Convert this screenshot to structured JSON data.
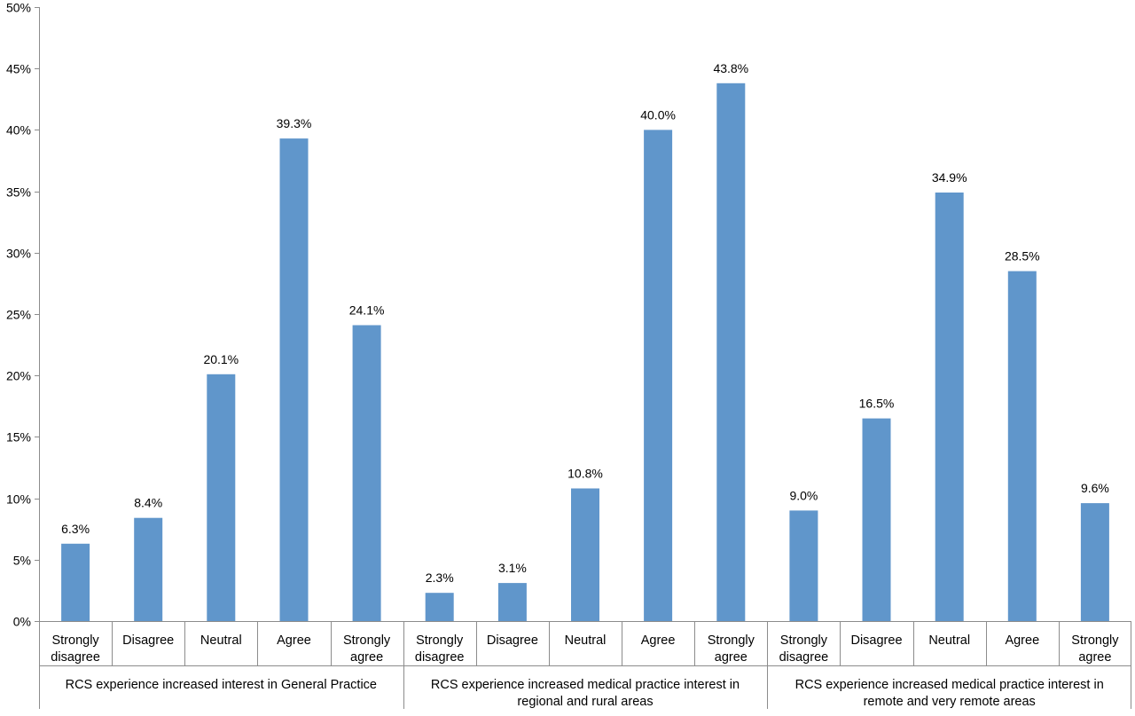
{
  "chart_data": {
    "type": "bar",
    "y_axis": {
      "ylim": [
        0,
        50
      ],
      "ticks": [
        "0%",
        "5%",
        "10%",
        "15%",
        "20%",
        "25%",
        "30%",
        "35%",
        "40%",
        "45%",
        "50%"
      ],
      "tick_values": [
        0,
        5,
        10,
        15,
        20,
        25,
        30,
        35,
        40,
        45,
        50
      ]
    },
    "grid": false,
    "bar_color": "#6096CB",
    "groups": [
      {
        "label": "RCS experience increased interest in General Practice",
        "categories": [
          "Strongly disagree",
          "Disagree",
          "Neutral",
          "Agree",
          "Strongly agree"
        ],
        "values": [
          6.3,
          8.4,
          20.1,
          39.3,
          24.1
        ],
        "value_labels": [
          "6.3%",
          "8.4%",
          "20.1%",
          "39.3%",
          "24.1%"
        ]
      },
      {
        "label": "RCS experience increased medical practice interest in regional and rural areas",
        "categories": [
          "Strongly disagree",
          "Disagree",
          "Neutral",
          "Agree",
          "Strongly agree"
        ],
        "values": [
          2.3,
          3.1,
          10.8,
          40.0,
          43.8
        ],
        "value_labels": [
          "2.3%",
          "3.1%",
          "10.8%",
          "40.0%",
          "43.8%"
        ]
      },
      {
        "label": "RCS experience increased medical practice interest in remote and very remote areas",
        "categories": [
          "Strongly disagree",
          "Disagree",
          "Neutral",
          "Agree",
          "Strongly agree"
        ],
        "values": [
          9.0,
          16.5,
          34.9,
          28.5,
          9.6
        ],
        "value_labels": [
          "9.0%",
          "16.5%",
          "34.9%",
          "28.5%",
          "9.6%"
        ]
      }
    ]
  }
}
